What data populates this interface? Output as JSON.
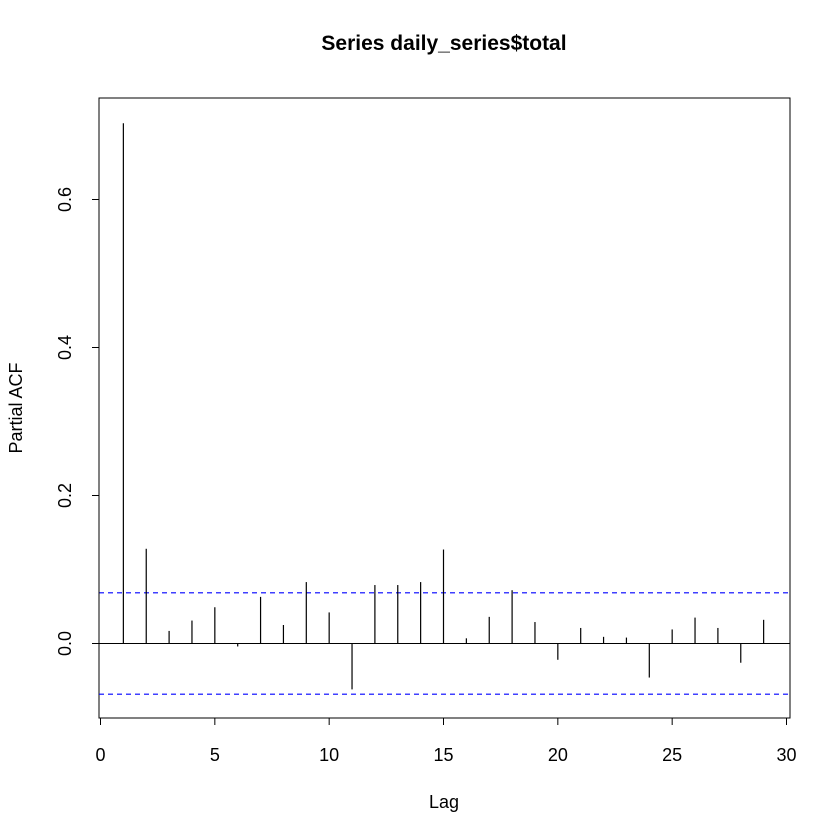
{
  "chart_data": {
    "type": "bar",
    "title": "Series  daily_series$total",
    "xlabel": "Lag",
    "ylabel": "Partial ACF",
    "xlim": [
      0,
      30
    ],
    "ylim": [
      -0.1,
      0.7
    ],
    "x_ticks": [
      "0",
      "5",
      "10",
      "15",
      "20",
      "25",
      "30"
    ],
    "y_ticks": [
      "0.0",
      "0.2",
      "0.4",
      "0.6"
    ],
    "x": [
      1,
      2,
      3,
      4,
      5,
      6,
      7,
      8,
      9,
      10,
      11,
      12,
      13,
      14,
      15,
      16,
      17,
      18,
      19,
      20,
      21,
      22,
      23,
      24,
      25,
      26,
      27,
      28,
      29
    ],
    "values": [
      0.703,
      0.128,
      0.017,
      0.031,
      0.049,
      -0.004,
      0.063,
      0.025,
      0.083,
      0.042,
      -0.062,
      0.079,
      0.079,
      0.083,
      0.127,
      0.007,
      0.036,
      0.072,
      0.029,
      -0.022,
      0.021,
      0.009,
      0.008,
      -0.046,
      0.019,
      0.035,
      0.021,
      -0.026,
      0.032
    ],
    "confidence_bounds": [
      0.0685,
      -0.0685
    ],
    "grid": false,
    "legend": null,
    "colors": {
      "spikes": "#000000",
      "bounds": "#0000ff",
      "zero_line": "#000000"
    }
  }
}
